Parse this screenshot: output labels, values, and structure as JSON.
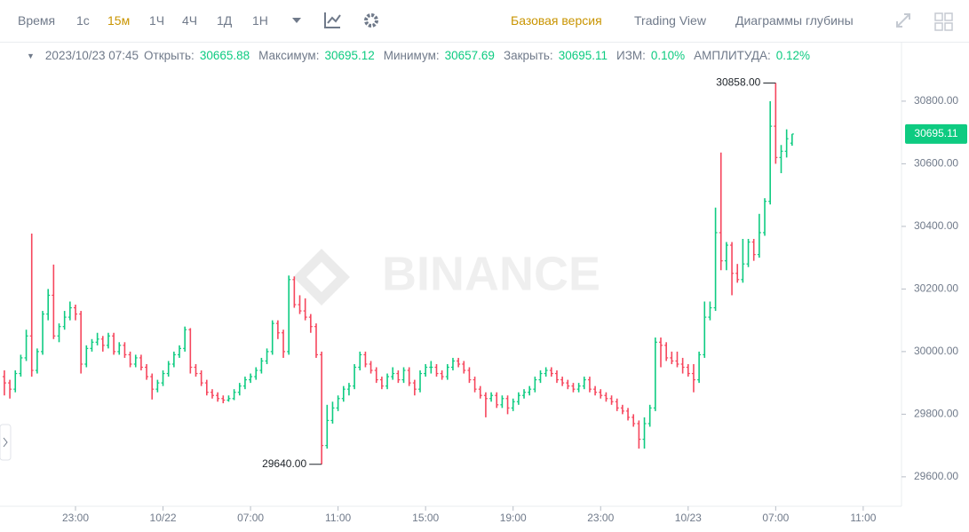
{
  "toolbar": {
    "intervals": [
      "Время",
      "1с",
      "15м",
      "1Ч",
      "4Ч",
      "1Д",
      "1Н"
    ],
    "active_interval": 2,
    "views": [
      "Базовая версия",
      "Trading View",
      "Диаграммы глубины"
    ],
    "active_view": 0
  },
  "info": {
    "date": "2023/10/23 07:45",
    "open_label": "Открыть:",
    "high_label": "Максимум:",
    "low_label": "Минимум:",
    "close_label": "Закрыть:",
    "change_label": "ИЗМ:",
    "change": "0.10%",
    "amplitude_label": "АМПЛИТУДА:",
    "amplitude": "0.12%"
  },
  "chart_data": {
    "type": "ohlc",
    "watermark": "BINANCE",
    "up_color": "#0ecb81",
    "down_color": "#f6465d",
    "annotations": [
      {
        "text": "30858.00"
      },
      {
        "text": "29640.00"
      }
    ],
    "last_price": {
      "value": 30695.11,
      "label": "30695.11"
    },
    "ylim": [
      29506,
      30987
    ],
    "yticks": [
      {
        "value": 29600,
        "label": "29600.00"
      },
      {
        "value": 29800,
        "label": "29800.00"
      },
      {
        "value": 30000,
        "label": "30000.00"
      },
      {
        "value": 30200,
        "label": "30200.00"
      },
      {
        "value": 30400,
        "label": "30400.00"
      },
      {
        "value": 30600,
        "label": "30600.00"
      },
      {
        "value": 30800,
        "label": "30800.00"
      }
    ],
    "xlim": [
      -0.8,
      164
    ],
    "xticks": [
      {
        "value": 13,
        "label": "23:00"
      },
      {
        "value": 29,
        "label": "10/22"
      },
      {
        "value": 45,
        "label": "07:00"
      },
      {
        "value": 61,
        "label": "11:00"
      },
      {
        "value": 77,
        "label": "15:00"
      },
      {
        "value": 93,
        "label": "19:00"
      },
      {
        "value": 109,
        "label": "23:00"
      },
      {
        "value": 125,
        "label": "10/23"
      },
      {
        "value": 141,
        "label": "07:00"
      },
      {
        "value": 157,
        "label": "11:00"
      }
    ],
    "candles": [
      [
        29920,
        29940,
        29860,
        29900
      ],
      [
        29900,
        29910,
        29850,
        29880
      ],
      [
        29880,
        29940,
        29870,
        29930
      ],
      [
        29930,
        29990,
        29920,
        29980
      ],
      [
        29980,
        30070,
        29970,
        30050
      ],
      [
        30050,
        30377,
        29920,
        29940
      ],
      [
        29940,
        30010,
        29930,
        30000
      ],
      [
        30000,
        30130,
        29990,
        30120
      ],
      [
        30120,
        30200,
        30100,
        30180
      ],
      [
        30180,
        30278,
        30040,
        30050
      ],
      [
        30050,
        30090,
        30030,
        30080
      ],
      [
        30080,
        30130,
        30070,
        30110
      ],
      [
        30110,
        30160,
        30100,
        30140
      ],
      [
        30140,
        30150,
        30100,
        30120
      ],
      [
        30120,
        30130,
        29930,
        29960
      ],
      [
        29960,
        30020,
        29950,
        30010
      ],
      [
        30010,
        30040,
        30000,
        30030
      ],
      [
        30030,
        30060,
        30020,
        30040
      ],
      [
        30040,
        30050,
        30000,
        30020
      ],
      [
        30020,
        30060,
        30010,
        30050
      ],
      [
        30050,
        30060,
        29990,
        30000
      ],
      [
        30000,
        30030,
        29990,
        30020
      ],
      [
        30020,
        30030,
        29980,
        29990
      ],
      [
        29990,
        30000,
        29950,
        29960
      ],
      [
        29960,
        29990,
        29950,
        29980
      ],
      [
        29980,
        29990,
        29940,
        29950
      ],
      [
        29950,
        29960,
        29910,
        29920
      ],
      [
        29920,
        29930,
        29847,
        29880
      ],
      [
        29880,
        29910,
        29870,
        29900
      ],
      [
        29900,
        29940,
        29890,
        29930
      ],
      [
        29930,
        29970,
        29920,
        29960
      ],
      [
        29960,
        30000,
        29950,
        29990
      ],
      [
        29990,
        30020,
        29980,
        30010
      ],
      [
        30010,
        30080,
        30000,
        30070
      ],
      [
        30070,
        30075,
        29930,
        29950
      ],
      [
        29950,
        29960,
        29920,
        29930
      ],
      [
        29930,
        29940,
        29890,
        29900
      ],
      [
        29900,
        29910,
        29860,
        29870
      ],
      [
        29870,
        29880,
        29850,
        29860
      ],
      [
        29860,
        29870,
        29840,
        29850
      ],
      [
        29850,
        29860,
        29835,
        29845
      ],
      [
        29845,
        29860,
        29840,
        29850
      ],
      [
        29850,
        29880,
        29845,
        29870
      ],
      [
        29870,
        29900,
        29860,
        29890
      ],
      [
        29890,
        29920,
        29880,
        29910
      ],
      [
        29910,
        29930,
        29900,
        29920
      ],
      [
        29920,
        29950,
        29910,
        29940
      ],
      [
        29940,
        29980,
        29930,
        29970
      ],
      [
        29970,
        30010,
        29960,
        30000
      ],
      [
        30000,
        30100,
        29990,
        30090
      ],
      [
        30090,
        30100,
        30040,
        30060
      ],
      [
        30060,
        30070,
        29980,
        30000
      ],
      [
        30000,
        30243,
        29990,
        30230
      ],
      [
        30230,
        30240,
        30140,
        30150
      ],
      [
        30150,
        30180,
        30120,
        30130
      ],
      [
        30130,
        30170,
        30100,
        30110
      ],
      [
        30110,
        30120,
        30060,
        30080
      ],
      [
        30080,
        30090,
        29980,
        29990
      ],
      [
        29990,
        30000,
        29640,
        29700
      ],
      [
        29700,
        29830,
        29690,
        29780
      ],
      [
        29780,
        29840,
        29770,
        29820
      ],
      [
        29820,
        29860,
        29810,
        29850
      ],
      [
        29850,
        29890,
        29840,
        29880
      ],
      [
        29880,
        29900,
        29860,
        29890
      ],
      [
        29890,
        29960,
        29880,
        29950
      ],
      [
        29950,
        30000,
        29940,
        29990
      ],
      [
        29990,
        30000,
        29950,
        29960
      ],
      [
        29960,
        29970,
        29930,
        29940
      ],
      [
        29940,
        29950,
        29900,
        29910
      ],
      [
        29910,
        29920,
        29880,
        29890
      ],
      [
        29890,
        29930,
        29880,
        29920
      ],
      [
        29920,
        29950,
        29910,
        29930
      ],
      [
        29930,
        29940,
        29900,
        29910
      ],
      [
        29910,
        29950,
        29900,
        29940
      ],
      [
        29940,
        29950,
        29890,
        29900
      ],
      [
        29900,
        29910,
        29860,
        29880
      ],
      [
        29880,
        29940,
        29870,
        29930
      ],
      [
        29930,
        29960,
        29920,
        29950
      ],
      [
        29950,
        29970,
        29930,
        29950
      ],
      [
        29950,
        29960,
        29920,
        29930
      ],
      [
        29930,
        29940,
        29910,
        29920
      ],
      [
        29920,
        29960,
        29910,
        29950
      ],
      [
        29950,
        29980,
        29940,
        29970
      ],
      [
        29970,
        29980,
        29950,
        29960
      ],
      [
        29960,
        29970,
        29930,
        29940
      ],
      [
        29940,
        29950,
        29900,
        29910
      ],
      [
        29910,
        29920,
        29870,
        29880
      ],
      [
        29880,
        29890,
        29850,
        29860
      ],
      [
        29860,
        29870,
        29790,
        29850
      ],
      [
        29850,
        29870,
        29840,
        29860
      ],
      [
        29860,
        29870,
        29820,
        29830
      ],
      [
        29830,
        29860,
        29820,
        29850
      ],
      [
        29850,
        29860,
        29800,
        29820
      ],
      [
        29820,
        29850,
        29810,
        29840
      ],
      [
        29840,
        29870,
        29830,
        29860
      ],
      [
        29860,
        29880,
        29850,
        29870
      ],
      [
        29870,
        29890,
        29860,
        29880
      ],
      [
        29880,
        29920,
        29870,
        29910
      ],
      [
        29910,
        29940,
        29900,
        29930
      ],
      [
        29930,
        29950,
        29920,
        29940
      ],
      [
        29940,
        29950,
        29920,
        29930
      ],
      [
        29930,
        29940,
        29900,
        29910
      ],
      [
        29910,
        29920,
        29890,
        29900
      ],
      [
        29900,
        29910,
        29880,
        29890
      ],
      [
        29890,
        29900,
        29870,
        29880
      ],
      [
        29880,
        29900,
        29870,
        29890
      ],
      [
        29890,
        29920,
        29880,
        29910
      ],
      [
        29910,
        29920,
        29870,
        29880
      ],
      [
        29880,
        29890,
        29860,
        29870
      ],
      [
        29870,
        29880,
        29850,
        29860
      ],
      [
        29860,
        29870,
        29840,
        29850
      ],
      [
        29850,
        29860,
        29830,
        29840
      ],
      [
        29840,
        29850,
        29810,
        29820
      ],
      [
        29820,
        29830,
        29800,
        29810
      ],
      [
        29810,
        29820,
        29780,
        29790
      ],
      [
        29790,
        29800,
        29760,
        29770
      ],
      [
        29770,
        29780,
        29690,
        29720
      ],
      [
        29720,
        29790,
        29690,
        29770
      ],
      [
        29770,
        29830,
        29760,
        29820
      ],
      [
        29820,
        30045,
        29810,
        30030
      ],
      [
        30030,
        30045,
        29950,
        30020
      ],
      [
        30020,
        30030,
        29970,
        29980
      ],
      [
        29980,
        30000,
        29960,
        29970
      ],
      [
        29970,
        30000,
        29950,
        29960
      ],
      [
        29960,
        29980,
        29930,
        29950
      ],
      [
        29950,
        29960,
        29920,
        29930
      ],
      [
        29930,
        29960,
        29870,
        29910
      ],
      [
        29910,
        30000,
        29900,
        29990
      ],
      [
        29990,
        30160,
        29980,
        30110
      ],
      [
        30110,
        30160,
        30100,
        30140
      ],
      [
        30140,
        30460,
        30130,
        30380
      ],
      [
        30380,
        30636,
        30260,
        30290
      ],
      [
        30290,
        30350,
        30260,
        30340
      ],
      [
        30340,
        30350,
        30180,
        30250
      ],
      [
        30250,
        30280,
        30220,
        30230
      ],
      [
        30230,
        30360,
        30220,
        30280
      ],
      [
        30280,
        30360,
        30270,
        30350
      ],
      [
        30350,
        30360,
        30290,
        30310
      ],
      [
        30310,
        30440,
        30300,
        30380
      ],
      [
        30380,
        30490,
        30370,
        30480
      ],
      [
        30480,
        30800,
        30470,
        30720
      ],
      [
        30720,
        30858,
        30600,
        30620
      ],
      [
        30620,
        30660,
        30570,
        30640
      ],
      [
        30640,
        30710,
        30620,
        30680
      ],
      [
        30665.88,
        30695.12,
        30657.69,
        30695.11
      ]
    ]
  }
}
